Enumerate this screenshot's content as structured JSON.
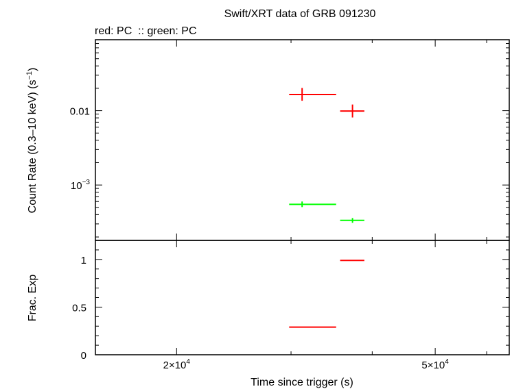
{
  "title": "Swift/XRT data of GRB 091230",
  "subtitle": "red: PC  :: green: PC",
  "chart_data": [
    {
      "type": "scatter",
      "panel": "top",
      "ylabel_main": "Count Rate (0.3–10 keV) (s",
      "ylabel_sup": "−1",
      "ylabel_end": ")",
      "x_scale": "log",
      "y_scale": "log",
      "xlim": [
        15000,
        65000
      ],
      "ylim": [
        0.00018,
        0.09
      ],
      "ytick_labels": [
        {
          "value": 0.01,
          "base": "0.01",
          "sup": ""
        },
        {
          "value": 0.001,
          "base": "10",
          "sup": "−3"
        }
      ],
      "series": [
        {
          "color": "#ff0000",
          "points": [
            {
              "x": 31200,
              "xlo": 29800,
              "xhi": 35200,
              "y": 0.0165,
              "ylo": 0.0136,
              "yhi": 0.0202
            },
            {
              "x": 37300,
              "xlo": 35700,
              "xhi": 38900,
              "y": 0.0099,
              "ylo": 0.0081,
              "yhi": 0.0121
            }
          ]
        },
        {
          "color": "#00ff00",
          "points": [
            {
              "x": 31200,
              "xlo": 29800,
              "xhi": 35200,
              "y": 0.00055,
              "ylo": 0.000505,
              "yhi": 0.0006
            },
            {
              "x": 37300,
              "xlo": 35700,
              "xhi": 38900,
              "y": 0.000335,
              "ylo": 0.00031,
              "yhi": 0.00036
            }
          ]
        }
      ]
    },
    {
      "type": "scatter",
      "panel": "bottom",
      "ylabel": "Frac. Exp",
      "xlabel": "Time since trigger (s)",
      "x_scale": "log",
      "xlim": [
        15000,
        65000
      ],
      "ylim": [
        0,
        1.2
      ],
      "yticks": [
        "0",
        "0.5",
        "1"
      ],
      "xtick_labels": [
        {
          "value": 20000,
          "base": "2×10",
          "sup": "4"
        },
        {
          "value": 50000,
          "base": "5×10",
          "sup": "4"
        }
      ],
      "series": [
        {
          "color": "#ff0000",
          "points": [
            {
              "x": 32000,
              "xlo": 29800,
              "xhi": 35200,
              "y": 0.29
            },
            {
              "x": 37300,
              "xlo": 35700,
              "xhi": 38900,
              "y": 0.99
            }
          ]
        }
      ]
    }
  ]
}
